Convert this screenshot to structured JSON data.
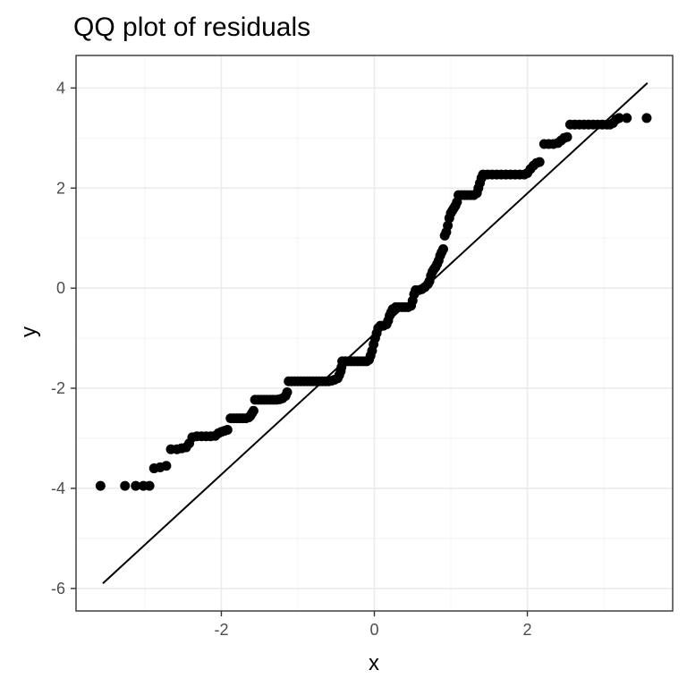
{
  "chart_data": {
    "type": "scatter",
    "title": "QQ plot of residuals",
    "xlabel": "x",
    "ylabel": "y",
    "xlim": [
      -3.9,
      3.9
    ],
    "ylim": [
      -6.45,
      4.65
    ],
    "x_ticks": [
      -2,
      0,
      2
    ],
    "y_ticks": [
      4,
      2,
      0,
      -2,
      -4,
      -6
    ],
    "x_tick_labels": [
      "-2",
      "0",
      "2"
    ],
    "y_tick_labels": [
      "4",
      "2",
      "0",
      "-2",
      "-4",
      "-6"
    ],
    "grid": true,
    "reference_line": {
      "x": [
        -3.55,
        3.57
      ],
      "y": [
        -5.9,
        4.1
      ]
    },
    "series": [
      {
        "points": [
          [
            -3.58,
            -3.95
          ],
          [
            -3.26,
            -3.95
          ],
          [
            -3.12,
            -3.95
          ],
          [
            -3.02,
            -3.95
          ],
          [
            -2.94,
            -3.95
          ],
          [
            -2.88,
            -3.6
          ],
          [
            -2.8,
            -3.58
          ],
          [
            -2.72,
            -3.55
          ],
          [
            -2.66,
            -3.22
          ],
          [
            -2.58,
            -3.22
          ],
          [
            -2.52,
            -3.2
          ],
          [
            -2.46,
            -3.18
          ],
          [
            -2.42,
            -3.1
          ],
          [
            -2.38,
            -2.98
          ],
          [
            -2.32,
            -2.96
          ],
          [
            -2.26,
            -2.96
          ],
          [
            -2.2,
            -2.96
          ],
          [
            -2.14,
            -2.96
          ],
          [
            -2.08,
            -2.95
          ],
          [
            -2.04,
            -2.9
          ],
          [
            -2.0,
            -2.87
          ],
          [
            -1.96,
            -2.85
          ],
          [
            -1.92,
            -2.83
          ],
          [
            -1.88,
            -2.6
          ],
          [
            -1.84,
            -2.6
          ],
          [
            -1.8,
            -2.6
          ],
          [
            -1.76,
            -2.6
          ],
          [
            -1.72,
            -2.6
          ],
          [
            -1.68,
            -2.6
          ],
          [
            -1.64,
            -2.58
          ],
          [
            -1.62,
            -2.55
          ],
          [
            -1.6,
            -2.5
          ],
          [
            -1.58,
            -2.45
          ],
          [
            -1.56,
            -2.23
          ],
          [
            -1.52,
            -2.23
          ],
          [
            -1.48,
            -2.23
          ],
          [
            -1.44,
            -2.23
          ],
          [
            -1.4,
            -2.23
          ],
          [
            -1.36,
            -2.23
          ],
          [
            -1.32,
            -2.23
          ],
          [
            -1.28,
            -2.23
          ],
          [
            -1.24,
            -2.22
          ],
          [
            -1.2,
            -2.2
          ],
          [
            -1.16,
            -2.15
          ],
          [
            -1.14,
            -2.08
          ],
          [
            -1.12,
            -1.86
          ],
          [
            -1.08,
            -1.86
          ],
          [
            -1.04,
            -1.86
          ],
          [
            -1.0,
            -1.86
          ],
          [
            -0.96,
            -1.86
          ],
          [
            -0.92,
            -1.86
          ],
          [
            -0.88,
            -1.86
          ],
          [
            -0.84,
            -1.86
          ],
          [
            -0.8,
            -1.86
          ],
          [
            -0.76,
            -1.86
          ],
          [
            -0.72,
            -1.86
          ],
          [
            -0.68,
            -1.86
          ],
          [
            -0.64,
            -1.86
          ],
          [
            -0.6,
            -1.86
          ],
          [
            -0.56,
            -1.85
          ],
          [
            -0.52,
            -1.83
          ],
          [
            -0.48,
            -1.8
          ],
          [
            -0.46,
            -1.74
          ],
          [
            -0.44,
            -1.66
          ],
          [
            -0.43,
            -1.58
          ],
          [
            -0.42,
            -1.46
          ],
          [
            -0.38,
            -1.46
          ],
          [
            -0.34,
            -1.46
          ],
          [
            -0.3,
            -1.46
          ],
          [
            -0.26,
            -1.46
          ],
          [
            -0.22,
            -1.46
          ],
          [
            -0.18,
            -1.46
          ],
          [
            -0.14,
            -1.46
          ],
          [
            -0.1,
            -1.46
          ],
          [
            -0.07,
            -1.43
          ],
          [
            -0.05,
            -1.35
          ],
          [
            -0.03,
            -1.25
          ],
          [
            -0.01,
            -1.12
          ],
          [
            0.01,
            -1.0
          ],
          [
            0.03,
            -0.9
          ],
          [
            0.05,
            -0.8
          ],
          [
            0.08,
            -0.75
          ],
          [
            0.12,
            -0.75
          ],
          [
            0.16,
            -0.72
          ],
          [
            0.18,
            -0.65
          ],
          [
            0.2,
            -0.55
          ],
          [
            0.22,
            -0.48
          ],
          [
            0.24,
            -0.42
          ],
          [
            0.28,
            -0.38
          ],
          [
            0.32,
            -0.38
          ],
          [
            0.36,
            -0.38
          ],
          [
            0.4,
            -0.38
          ],
          [
            0.44,
            -0.38
          ],
          [
            0.48,
            -0.35
          ],
          [
            0.5,
            -0.25
          ],
          [
            0.52,
            -0.12
          ],
          [
            0.54,
            -0.04
          ],
          [
            0.58,
            -0.04
          ],
          [
            0.62,
            -0.02
          ],
          [
            0.66,
            0.02
          ],
          [
            0.7,
            0.08
          ],
          [
            0.72,
            0.14
          ],
          [
            0.74,
            0.25
          ],
          [
            0.76,
            0.33
          ],
          [
            0.78,
            0.38
          ],
          [
            0.8,
            0.42
          ],
          [
            0.82,
            0.48
          ],
          [
            0.84,
            0.55
          ],
          [
            0.86,
            0.65
          ],
          [
            0.88,
            0.72
          ],
          [
            0.9,
            0.78
          ],
          [
            0.92,
            1.05
          ],
          [
            0.94,
            1.12
          ],
          [
            0.96,
            1.25
          ],
          [
            0.98,
            1.4
          ],
          [
            1.0,
            1.5
          ],
          [
            1.02,
            1.55
          ],
          [
            1.04,
            1.6
          ],
          [
            1.06,
            1.65
          ],
          [
            1.08,
            1.72
          ],
          [
            1.1,
            1.86
          ],
          [
            1.14,
            1.86
          ],
          [
            1.18,
            1.86
          ],
          [
            1.22,
            1.86
          ],
          [
            1.26,
            1.86
          ],
          [
            1.3,
            1.86
          ],
          [
            1.34,
            1.9
          ],
          [
            1.36,
            2.0
          ],
          [
            1.38,
            2.1
          ],
          [
            1.4,
            2.2
          ],
          [
            1.42,
            2.27
          ],
          [
            1.48,
            2.27
          ],
          [
            1.54,
            2.27
          ],
          [
            1.6,
            2.27
          ],
          [
            1.66,
            2.27
          ],
          [
            1.72,
            2.27
          ],
          [
            1.78,
            2.27
          ],
          [
            1.84,
            2.27
          ],
          [
            1.9,
            2.27
          ],
          [
            1.96,
            2.27
          ],
          [
            2.0,
            2.3
          ],
          [
            2.04,
            2.38
          ],
          [
            2.08,
            2.45
          ],
          [
            2.12,
            2.5
          ],
          [
            2.16,
            2.52
          ],
          [
            2.22,
            2.88
          ],
          [
            2.28,
            2.88
          ],
          [
            2.34,
            2.88
          ],
          [
            2.4,
            2.9
          ],
          [
            2.44,
            2.95
          ],
          [
            2.48,
            3.0
          ],
          [
            2.52,
            3.02
          ],
          [
            2.56,
            3.27
          ],
          [
            2.62,
            3.27
          ],
          [
            2.68,
            3.27
          ],
          [
            2.74,
            3.27
          ],
          [
            2.8,
            3.27
          ],
          [
            2.86,
            3.27
          ],
          [
            2.92,
            3.27
          ],
          [
            2.98,
            3.27
          ],
          [
            3.04,
            3.27
          ],
          [
            3.08,
            3.27
          ],
          [
            3.12,
            3.3
          ],
          [
            3.16,
            3.37
          ],
          [
            3.2,
            3.4
          ],
          [
            3.3,
            3.4
          ],
          [
            3.56,
            3.4
          ]
        ]
      }
    ]
  }
}
